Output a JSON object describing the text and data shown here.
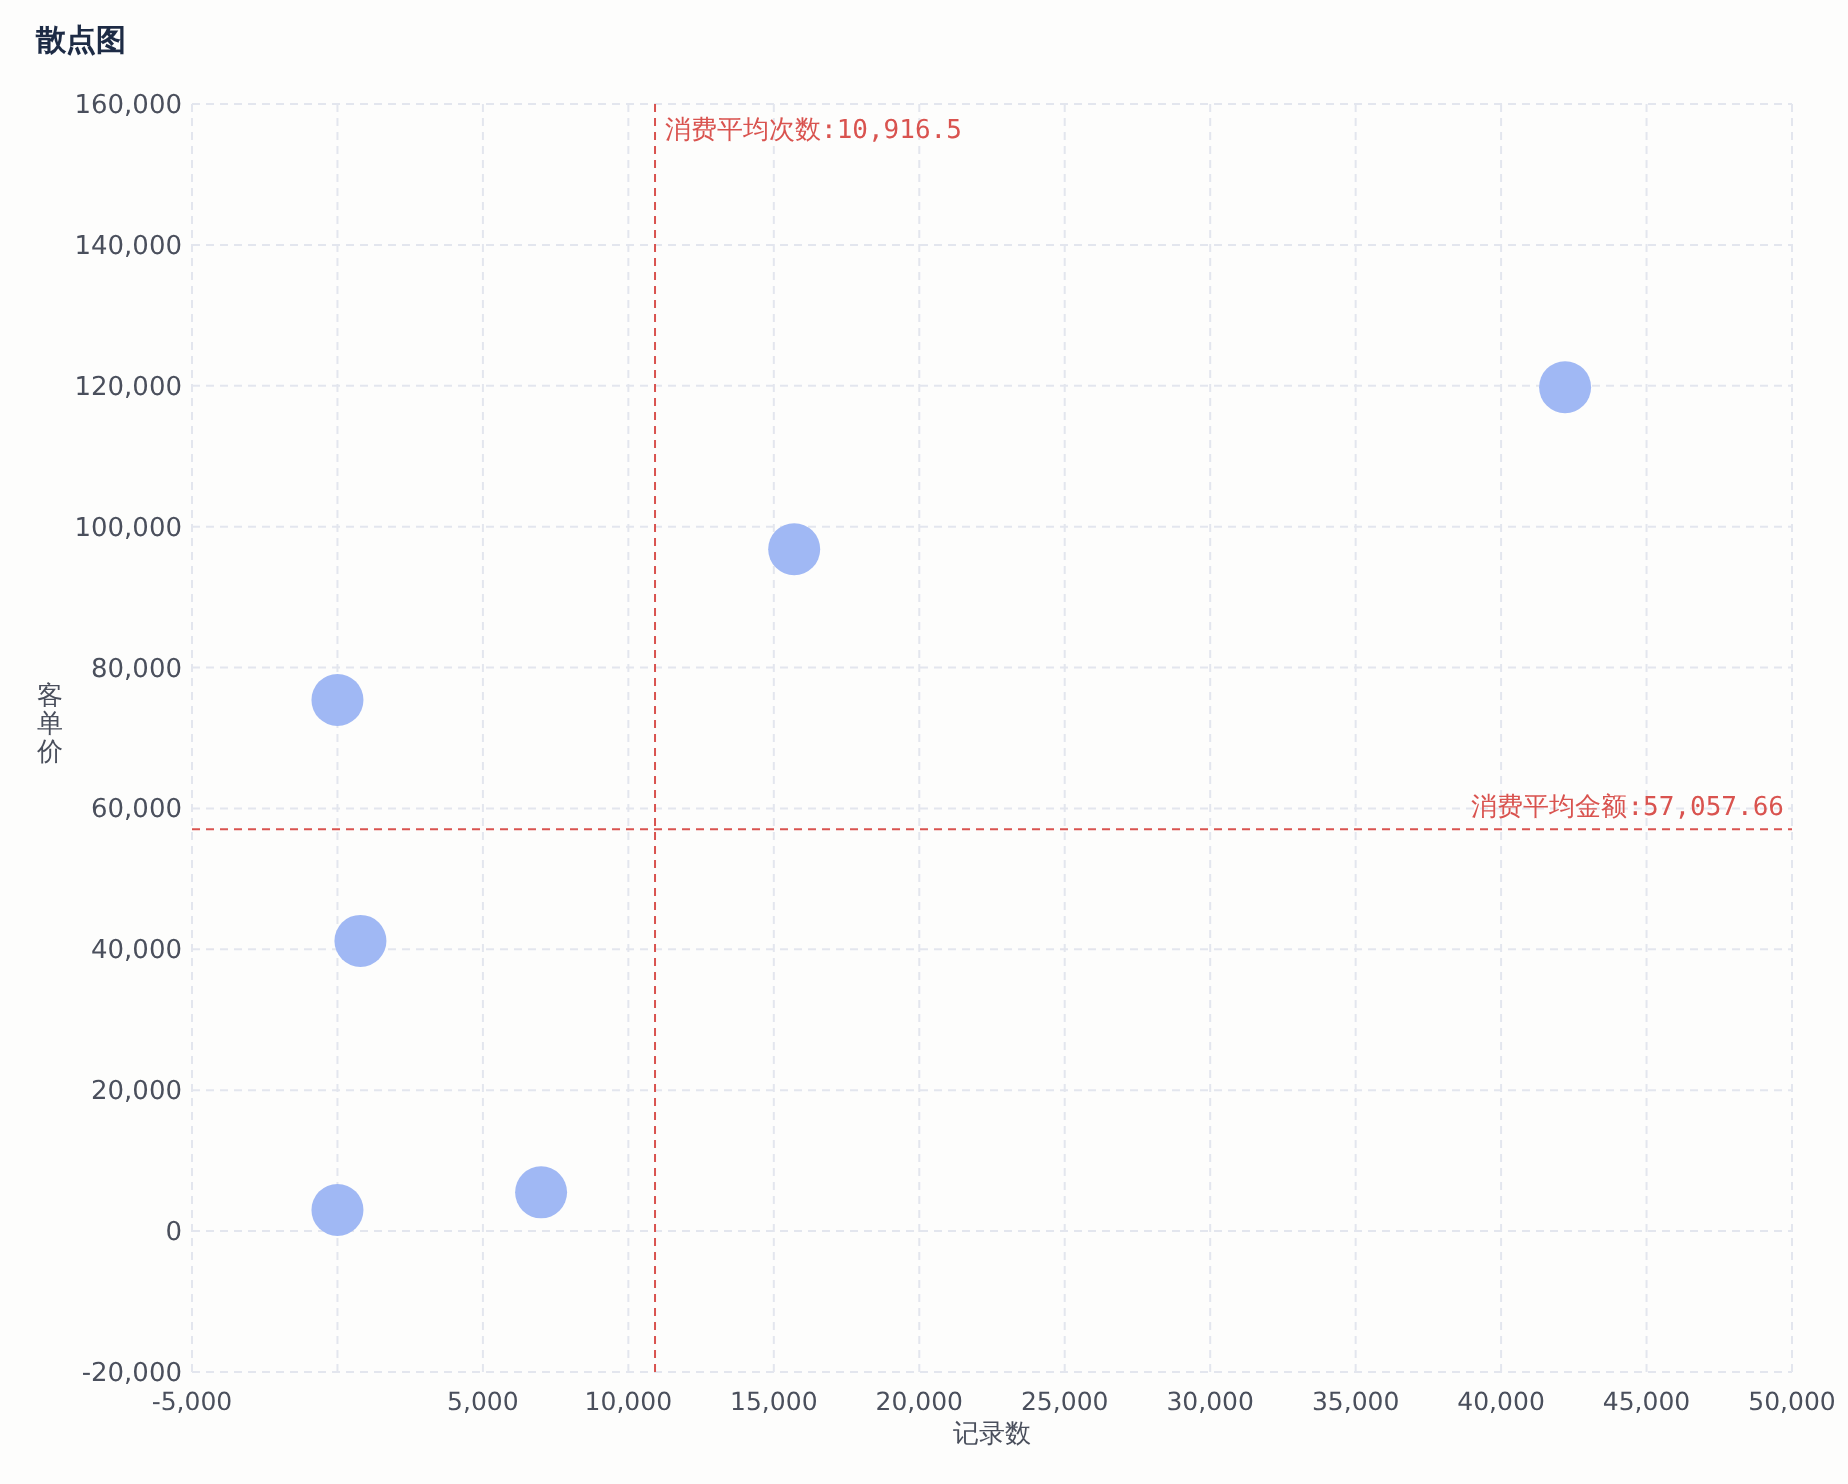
{
  "chart_data": {
    "type": "scatter",
    "title": "散点图",
    "xlabel": "记录数",
    "ylabel": "客单价",
    "x": [
      0,
      0,
      790,
      7000,
      15700,
      42200
    ],
    "values": [
      3000,
      75400,
      41200,
      5500,
      96800,
      119800
    ],
    "color": "#a0b8f4",
    "marker": "circle",
    "grid": true,
    "xlim": [
      -5000,
      50000
    ],
    "xticks": [
      {
        "value": -5000,
        "label": "-5,000"
      },
      {
        "value": 0,
        "label": null
      },
      {
        "value": 5000,
        "label": "5,000"
      },
      {
        "value": 10000,
        "label": "10,000"
      },
      {
        "value": 15000,
        "label": "15,000"
      },
      {
        "value": 20000,
        "label": "20,000"
      },
      {
        "value": 25000,
        "label": "25,000"
      },
      {
        "value": 30000,
        "label": "30,000"
      },
      {
        "value": 35000,
        "label": "35,000"
      },
      {
        "value": 40000,
        "label": "40,000"
      },
      {
        "value": 45000,
        "label": "45,000"
      },
      {
        "value": 50000,
        "label": "50,000"
      }
    ],
    "ylim": [
      -20000,
      160000
    ],
    "yticks": [
      {
        "value": -20000,
        "label": "-20,000"
      },
      0,
      {
        "value": 20000,
        "label": "20,000"
      },
      {
        "value": 40000,
        "label": "40,000"
      },
      {
        "value": 60000,
        "label": "60,000"
      },
      {
        "value": 80000,
        "label": "80,000"
      },
      {
        "value": 100000,
        "label": "100,000"
      },
      {
        "value": 120000,
        "label": "120,000"
      },
      {
        "value": 140000,
        "label": "140,000"
      },
      {
        "value": 160000,
        "label": "160,000"
      }
    ],
    "ref_lines": [
      {
        "axis": "x",
        "value": 10916.5,
        "label": "消费平均次数:10,916.5",
        "color": "#d9534f",
        "line_style": "dashed"
      },
      {
        "axis": "y",
        "value": 57057.66,
        "label": "消费平均金额:57,057.66",
        "color": "#d9534f",
        "line_style": "dashed"
      }
    ]
  }
}
